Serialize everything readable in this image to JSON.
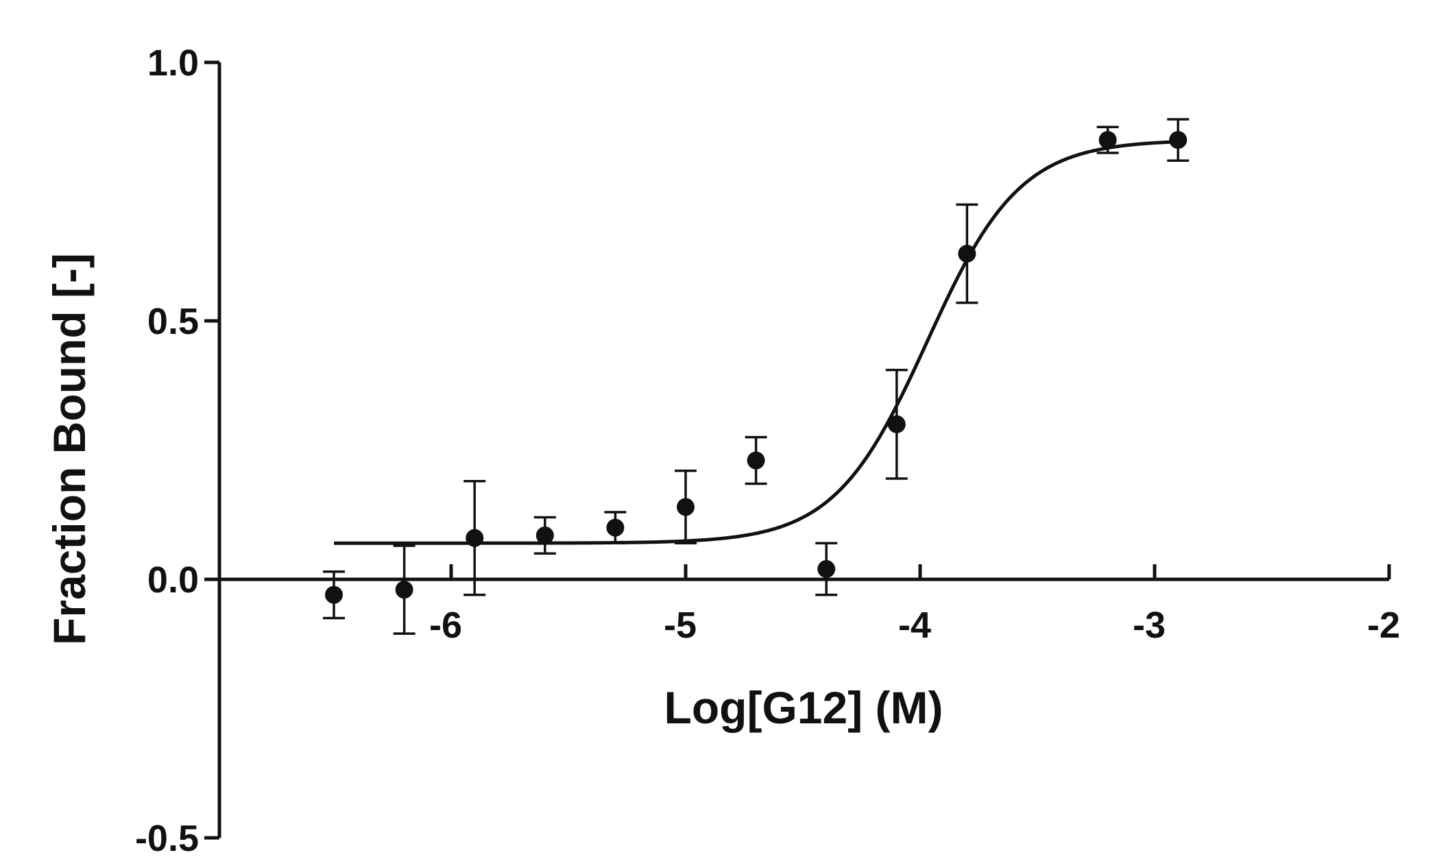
{
  "chart_data": {
    "type": "scatter",
    "xlabel": "Log[G12] (M)",
    "ylabel": "Fraction Bound [-]",
    "xlim": [
      -7,
      -2
    ],
    "ylim": [
      -0.5,
      1.0
    ],
    "x_ticks": [
      -6,
      -5,
      -4,
      -3,
      -2
    ],
    "x_tick_labels": [
      "-6",
      "-5",
      "-4",
      "-3",
      "-2"
    ],
    "y_ticks": [
      -0.5,
      0.0,
      0.5,
      1.0
    ],
    "y_tick_labels": [
      "-0.5",
      "0.0",
      "0.5",
      "1.0"
    ],
    "grid": false,
    "colors": {
      "marks": "#111111"
    },
    "points": [
      {
        "x": -6.5,
        "y": -0.03,
        "err": 0.045
      },
      {
        "x": -6.2,
        "y": -0.02,
        "err": 0.085
      },
      {
        "x": -5.9,
        "y": 0.08,
        "err": 0.11
      },
      {
        "x": -5.6,
        "y": 0.085,
        "err": 0.035
      },
      {
        "x": -5.3,
        "y": 0.1,
        "err": 0.03
      },
      {
        "x": -5.0,
        "y": 0.14,
        "err": 0.07
      },
      {
        "x": -4.7,
        "y": 0.23,
        "err": 0.045
      },
      {
        "x": -4.4,
        "y": 0.02,
        "err": 0.05
      },
      {
        "x": -4.1,
        "y": 0.3,
        "err": 0.105
      },
      {
        "x": -3.8,
        "y": 0.63,
        "err": 0.095
      },
      {
        "x": -3.2,
        "y": 0.85,
        "err": 0.025
      },
      {
        "x": -2.9,
        "y": 0.85,
        "err": 0.04
      }
    ],
    "fit": {
      "model": "sigmoidal dose-response",
      "bottom": 0.07,
      "top": 0.85,
      "logEC50": -3.97,
      "hill_slope": 2.2,
      "x_range": [
        -6.5,
        -2.9
      ]
    }
  }
}
